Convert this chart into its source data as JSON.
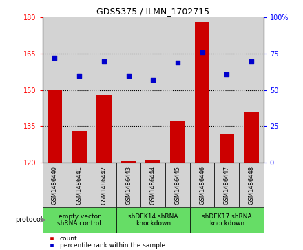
{
  "title": "GDS5375 / ILMN_1702715",
  "samples": [
    "GSM1486440",
    "GSM1486441",
    "GSM1486442",
    "GSM1486443",
    "GSM1486444",
    "GSM1486445",
    "GSM1486446",
    "GSM1486447",
    "GSM1486448"
  ],
  "counts": [
    150,
    133,
    148,
    120.5,
    121,
    137,
    178,
    132,
    141
  ],
  "percentiles": [
    72,
    60,
    70,
    60,
    57,
    69,
    76,
    61,
    70
  ],
  "ylim_left": [
    120,
    180
  ],
  "yticks_left": [
    120,
    135,
    150,
    165,
    180
  ],
  "ylim_right": [
    0,
    100
  ],
  "yticks_right": [
    0,
    25,
    50,
    75,
    100
  ],
  "group_labels": [
    "empty vector\nshRNA control",
    "shDEK14 shRNA\nknockdown",
    "shDEK17 shRNA\nknockdown"
  ],
  "group_boundaries": [
    0,
    3,
    6,
    9
  ],
  "group_color": "#66dd66",
  "bar_color": "#cc0000",
  "dot_color": "#0000cc",
  "bg_color": "#d3d3d3",
  "sample_box_color": "#d3d3d3",
  "legend_count": "count",
  "legend_pct": "percentile rank within the sample",
  "protocol_label": "protocol"
}
